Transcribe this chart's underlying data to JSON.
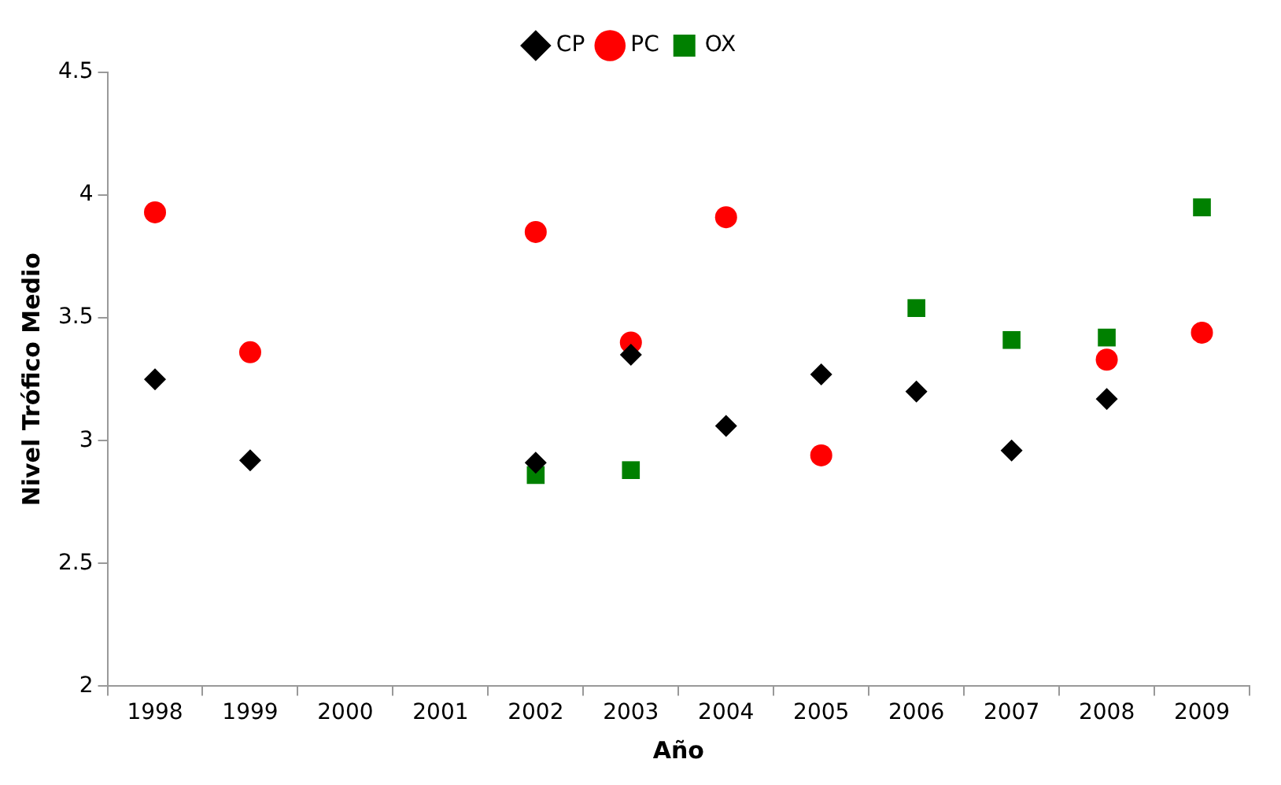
{
  "chart_data": {
    "type": "scatter",
    "xlabel": "Año",
    "ylabel": "Nivel Trófico Medio",
    "categories": [
      "1998",
      "1999",
      "2000",
      "2001",
      "2002",
      "2003",
      "2004",
      "2005",
      "2006",
      "2007",
      "2008",
      "2009"
    ],
    "series": [
      {
        "name": "CP",
        "color": "#000000",
        "marker": "diamond",
        "values": [
          3.25,
          2.92,
          null,
          null,
          2.91,
          3.35,
          3.06,
          3.27,
          3.2,
          2.96,
          3.17,
          null
        ]
      },
      {
        "name": "PC",
        "color": "#ff0000",
        "marker": "circle",
        "values": [
          3.93,
          3.36,
          null,
          null,
          3.85,
          3.4,
          3.91,
          2.94,
          null,
          null,
          3.33,
          3.44
        ]
      },
      {
        "name": "OX",
        "color": "#008000",
        "marker": "square",
        "values": [
          null,
          null,
          null,
          null,
          2.86,
          2.88,
          null,
          null,
          3.54,
          3.41,
          3.42,
          3.95
        ]
      }
    ],
    "ylim": [
      2,
      4.5
    ],
    "yticks": [
      2,
      2.5,
      3,
      3.5,
      4,
      4.5
    ],
    "grid": false,
    "legend": "top"
  }
}
